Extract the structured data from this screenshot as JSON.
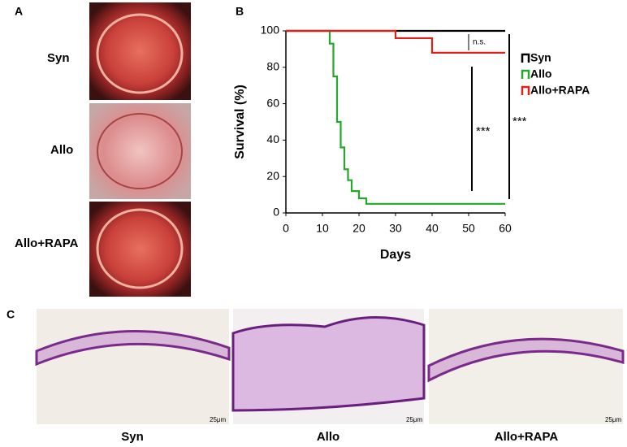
{
  "chart_data": {
    "type": "line",
    "xlabel": "Days",
    "ylabel": "Survival (%)",
    "xlim": [
      0,
      60
    ],
    "xticks": [
      0,
      10,
      20,
      30,
      40,
      50,
      60
    ],
    "ylim": [
      0,
      100
    ],
    "yticks": [
      0,
      20,
      40,
      60,
      80,
      100
    ],
    "grid": false,
    "legend": "right",
    "series": [
      {
        "name": "Syn",
        "color": "#000000",
        "x": [
          0,
          60
        ],
        "values": [
          100,
          100
        ]
      },
      {
        "name": "Allo",
        "color": "#22a82a",
        "x": [
          0,
          12,
          12,
          13,
          13,
          14,
          14,
          15,
          15,
          16,
          16,
          17,
          17,
          18,
          18,
          20,
          20,
          22,
          22,
          60
        ],
        "values": [
          100,
          100,
          93,
          93,
          75,
          75,
          50,
          50,
          36,
          36,
          24,
          24,
          18,
          18,
          12,
          12,
          8,
          8,
          5,
          5
        ]
      },
      {
        "name": "Allo+RAPA",
        "color": "#e0201b",
        "x": [
          0,
          30,
          30,
          40,
          40,
          60
        ],
        "values": [
          100,
          100,
          96,
          96,
          88,
          88
        ]
      }
    ],
    "annotations": [
      "n.s.",
      "***",
      "***"
    ]
  },
  "panel_labels": [
    "A",
    "B",
    "C"
  ],
  "photo_labels": [
    "Syn",
    "Allo",
    "Allo+RAPA"
  ],
  "histology_labels": [
    "Syn",
    "Allo",
    "Allo+RAPA"
  ],
  "scale_bars": [
    "25μm",
    "25μm",
    "25μm"
  ]
}
